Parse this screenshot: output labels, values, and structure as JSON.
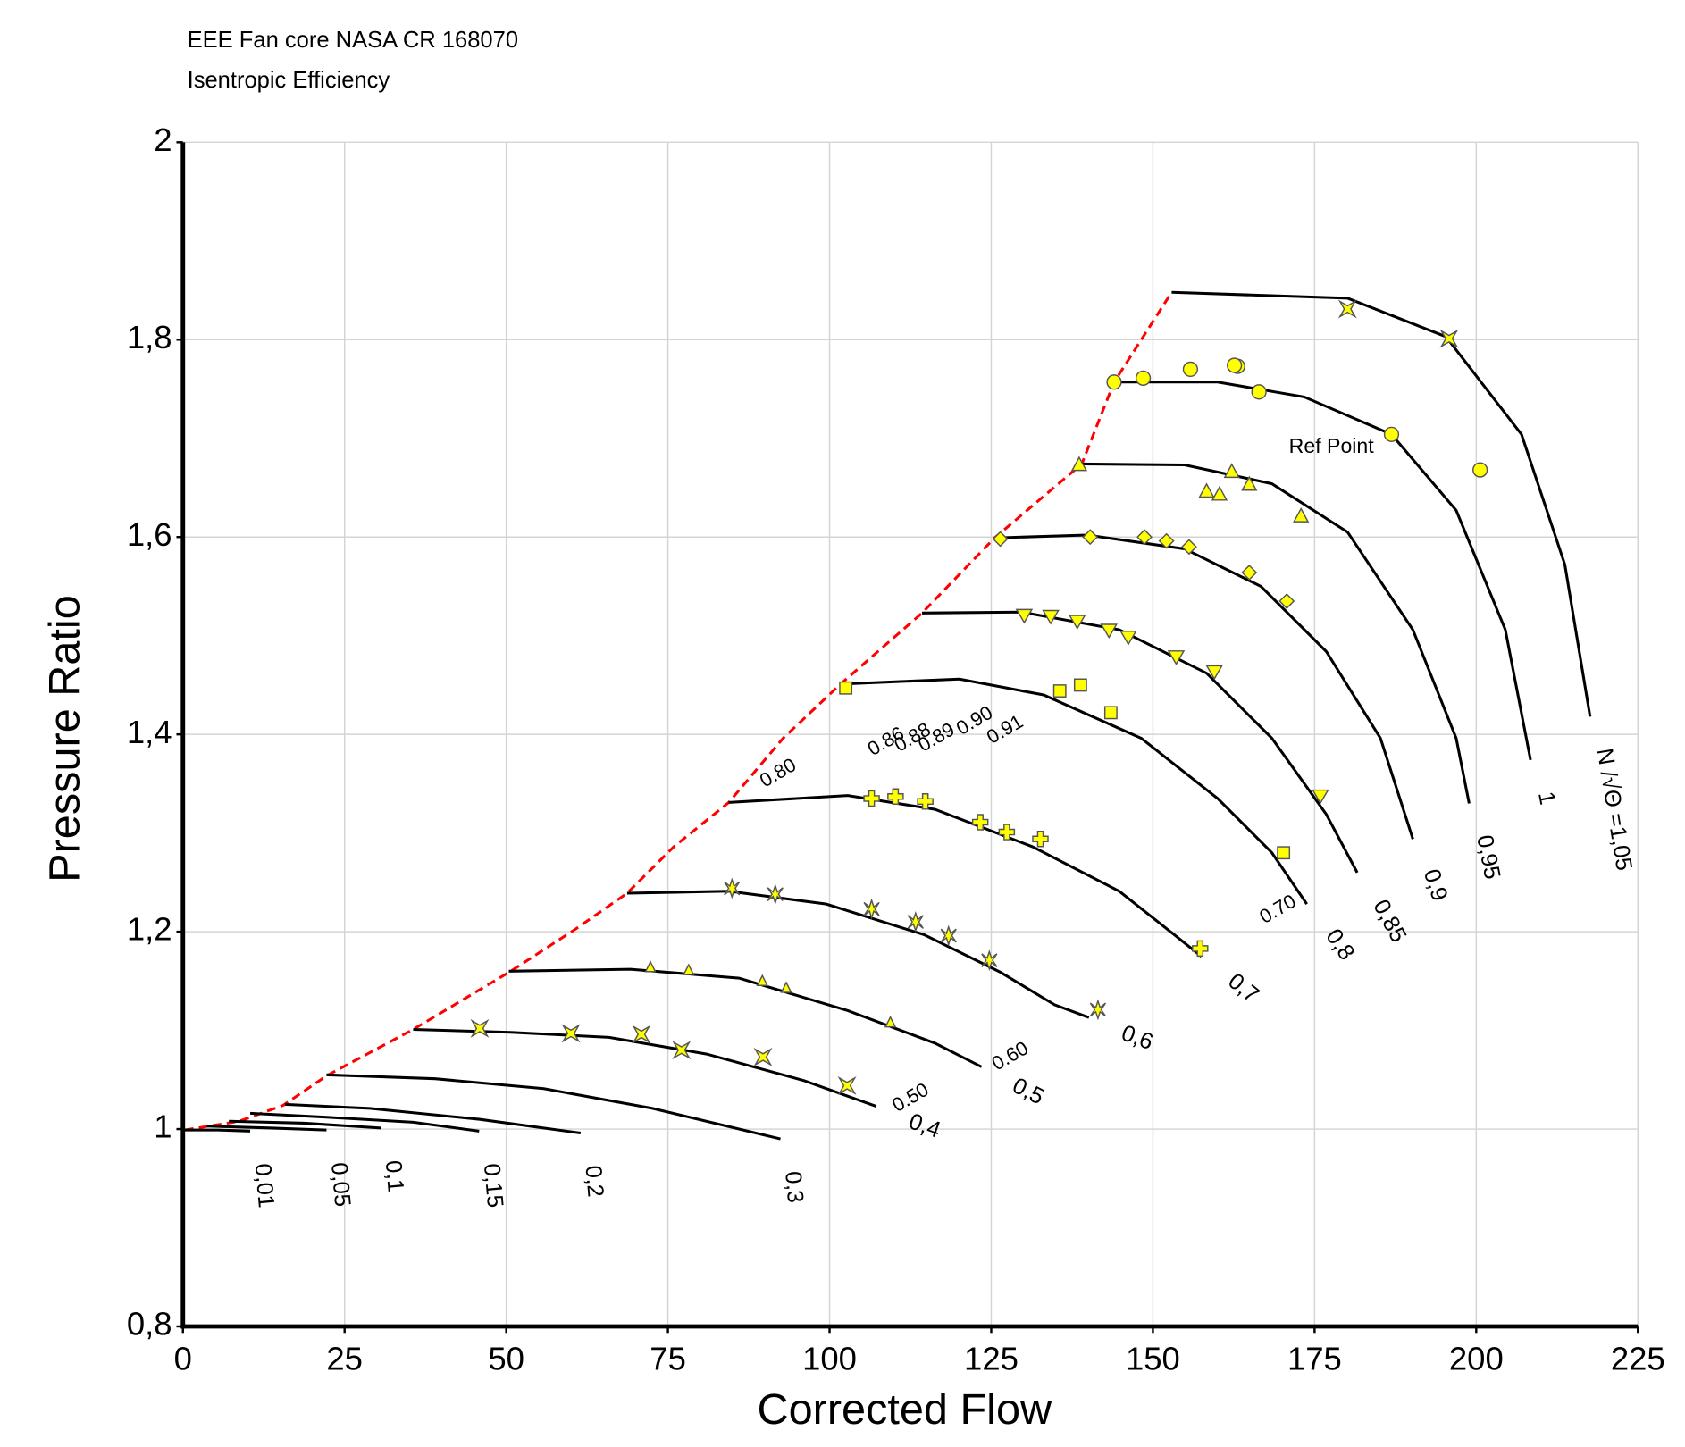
{
  "chart_data": {
    "type": "line",
    "title": "EEE Fan core NASA CR 168070",
    "subtitle": "Isentropic Efficiency",
    "x_label": "Corrected Flow",
    "y_label": "Pressure Ratio",
    "xlim": [
      0,
      225
    ],
    "ylim": [
      0.8,
      2
    ],
    "xticks": [
      0,
      25,
      50,
      75,
      100,
      125,
      150,
      175,
      200,
      225
    ],
    "yticks": [
      {
        "value": 0.8,
        "label": "0,8"
      },
      1,
      {
        "value": 1.2,
        "label": "1,2"
      },
      {
        "value": 1.4,
        "label": "1,4"
      },
      {
        "value": 1.6,
        "label": "1,6"
      },
      {
        "value": 1.8,
        "label": "1,8"
      },
      2
    ],
    "grid": true,
    "speed_line_color": "#000000",
    "speed_lines": [
      {
        "name": "N /√Θ =1,05",
        "x": [
          152.9,
          180.1,
          195.3,
          207.0,
          213.7,
          217.6
        ],
        "y": [
          1.848,
          1.842,
          1.803,
          1.704,
          1.572,
          1.418
        ]
      },
      {
        "name": "1",
        "x": [
          144.0,
          160.0,
          173.4,
          186.9,
          196.9,
          204.5,
          208.4
        ],
        "y": [
          1.757,
          1.757,
          1.742,
          1.704,
          1.627,
          1.506,
          1.374
        ]
      },
      {
        "name": "0,95",
        "x": [
          139.0,
          154.9,
          168.4,
          180.1,
          190.2,
          196.9,
          198.9
        ],
        "y": [
          1.674,
          1.673,
          1.654,
          1.605,
          1.506,
          1.396,
          1.33
        ]
      },
      {
        "name": "0,9",
        "x": [
          125.5,
          139.8,
          154.9,
          166.7,
          176.8,
          185.2,
          190.2
        ],
        "y": [
          1.599,
          1.602,
          1.588,
          1.55,
          1.484,
          1.396,
          1.294
        ]
      },
      {
        "name": "0,85",
        "x": [
          114.3,
          129.7,
          144.8,
          158.3,
          168.4,
          176.8,
          181.6
        ],
        "y": [
          1.523,
          1.524,
          1.506,
          1.462,
          1.396,
          1.319,
          1.26
        ]
      },
      {
        "name": "0,8",
        "x": [
          101.7,
          120.1,
          133.1,
          148.2,
          160.0,
          168.4,
          173.8
        ],
        "y": [
          1.451,
          1.456,
          1.44,
          1.396,
          1.335,
          1.28,
          1.228
        ]
      },
      {
        "name": "0,7",
        "x": [
          84.4,
          102.8,
          116.3,
          131.4,
          144.8,
          153.3,
          157.5
        ],
        "y": [
          1.331,
          1.338,
          1.324,
          1.286,
          1.241,
          1.197,
          1.175
        ]
      },
      {
        "name": "0,6",
        "x": [
          68.7,
          84.4,
          99.5,
          114.6,
          126.4,
          134.8,
          140.1
        ],
        "y": [
          1.239,
          1.241,
          1.228,
          1.197,
          1.159,
          1.126,
          1.113
        ]
      },
      {
        "name": "0,5",
        "x": [
          50.4,
          69.2,
          86.0,
          102.8,
          116.3,
          123.5
        ],
        "y": [
          1.16,
          1.162,
          1.153,
          1.12,
          1.087,
          1.063
        ]
      },
      {
        "name": "0,4",
        "x": [
          35.6,
          50.7,
          65.9,
          81.0,
          96.1,
          107.2
        ],
        "y": [
          1.101,
          1.098,
          1.093,
          1.076,
          1.049,
          1.023
        ]
      },
      {
        "name": "0,3",
        "x": [
          22.2,
          39.0,
          55.8,
          72.6,
          92.4
        ],
        "y": [
          1.055,
          1.051,
          1.041,
          1.021,
          0.99
        ]
      },
      {
        "name": "0,2",
        "x": [
          15.8,
          28.9,
          45.8,
          61.5
        ],
        "y": [
          1.025,
          1.021,
          1.01,
          0.996
        ]
      },
      {
        "name": "0,15",
        "x": [
          10.4,
          22.2,
          35.6,
          45.8
        ],
        "y": [
          1.016,
          1.012,
          1.007,
          0.998
        ]
      },
      {
        "name": "0,1",
        "x": [
          7.1,
          18.8,
          30.6
        ],
        "y": [
          1.008,
          1.006,
          1.001
        ]
      },
      {
        "name": "0,05",
        "x": [
          3.7,
          13.8,
          22.2
        ],
        "y": [
          1.003,
          1.001,
          0.999
        ]
      },
      {
        "name": "0,01",
        "x": [
          0.3,
          5.4,
          10.4
        ],
        "y": [
          0.999,
          0.999,
          0.998
        ]
      }
    ],
    "surge_line": {
      "color": "#ff0000",
      "x": [
        0.3,
        8.7,
        15.5,
        22.2,
        35.6,
        50.7,
        60.8,
        68.7,
        75.9,
        84.4,
        92.8,
        101.7,
        114.3,
        125.5,
        139.0,
        144.0,
        152.9
      ],
      "y": [
        0.999,
        1.008,
        1.024,
        1.054,
        1.101,
        1.16,
        1.203,
        1.239,
        1.286,
        1.331,
        1.396,
        1.451,
        1.523,
        1.599,
        1.674,
        1.757,
        1.848
      ]
    },
    "marker_color": "#ffff00",
    "points": [
      {
        "marker": "star",
        "x": [
          180.1,
          195.8
        ],
        "y": [
          1.831,
          1.801
        ]
      },
      {
        "marker": "circle",
        "x": [
          144.0,
          148.5,
          155.8,
          163.1,
          162.6,
          166.4,
          186.9,
          200.6
        ],
        "y": [
          1.757,
          1.761,
          1.77,
          1.773,
          1.774,
          1.747,
          1.704,
          1.668
        ]
      },
      {
        "marker": "triangle",
        "x": [
          138.6,
          158.3,
          160.3,
          162.2,
          164.9,
          172.9
        ],
        "y": [
          1.673,
          1.646,
          1.643,
          1.666,
          1.653,
          1.621
        ]
      },
      {
        "marker": "diamond",
        "x": [
          126.4,
          140.3,
          148.7,
          152.1,
          155.6,
          164.9,
          170.7
        ],
        "y": [
          1.598,
          1.6,
          1.6,
          1.596,
          1.59,
          1.564,
          1.535
        ]
      },
      {
        "marker": "triangle-down",
        "x": [
          130.1,
          134.2,
          138.3,
          143.2,
          146.2,
          153.6,
          159.5,
          175.9
        ],
        "y": [
          1.521,
          1.52,
          1.515,
          1.506,
          1.499,
          1.479,
          1.464,
          1.338
        ]
      },
      {
        "marker": "square",
        "x": [
          102.5,
          135.6,
          138.8,
          143.5,
          170.2
        ],
        "y": [
          1.447,
          1.444,
          1.45,
          1.422,
          1.28
        ]
      },
      {
        "marker": "plus",
        "x": [
          106.5,
          110.2,
          114.8,
          123.3,
          127.4,
          132.6,
          157.3
        ],
        "y": [
          1.335,
          1.337,
          1.332,
          1.311,
          1.301,
          1.294,
          1.183
        ]
      },
      {
        "marker": "asterisk",
        "x": [
          84.9,
          91.6,
          106.5,
          113.3,
          118.4,
          124.7,
          141.5
        ],
        "y": [
          1.244,
          1.238,
          1.223,
          1.21,
          1.196,
          1.171,
          1.121
        ]
      },
      {
        "marker": "triangle-small",
        "x": [
          72.3,
          78.2,
          89.6,
          93.3,
          109.4
        ],
        "y": [
          1.164,
          1.161,
          1.15,
          1.143,
          1.108
        ]
      },
      {
        "marker": "star",
        "x": [
          45.9,
          60.0,
          70.9,
          77.1,
          89.7,
          102.7
        ],
        "y": [
          1.102,
          1.097,
          1.096,
          1.08,
          1.073,
          1.044
        ]
      }
    ],
    "annotations": [
      {
        "text": "Ref Point",
        "x": 177.6,
        "y": 1.691
      },
      {
        "text": "0.80",
        "x": 92.1,
        "y": 1.36
      },
      {
        "text": "0.86",
        "x": 108.8,
        "y": 1.392
      },
      {
        "text": "0.88",
        "x": 112.9,
        "y": 1.396
      },
      {
        "text": "0.89",
        "x": 116.6,
        "y": 1.396
      },
      {
        "text": "0.90",
        "x": 122.5,
        "y": 1.413
      },
      {
        "text": "0.91",
        "x": 127.2,
        "y": 1.404
      },
      {
        "text": "0.70",
        "x": 169.4,
        "y": 1.222
      },
      {
        "text": "0.60",
        "x": 128.0,
        "y": 1.073
      },
      {
        "text": "0.50",
        "x": 112.6,
        "y": 1.031
      }
    ]
  }
}
